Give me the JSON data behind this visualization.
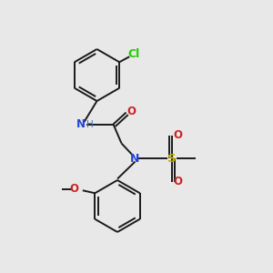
{
  "background_color": "#e8e8e8",
  "bond_color": "#1a1a1a",
  "bond_width": 1.4,
  "colors": {
    "Cl": "#22cc00",
    "N": "#2244dd",
    "H": "#4477aa",
    "O": "#cc2222",
    "S": "#bbaa00"
  },
  "fontsize": 8.5
}
